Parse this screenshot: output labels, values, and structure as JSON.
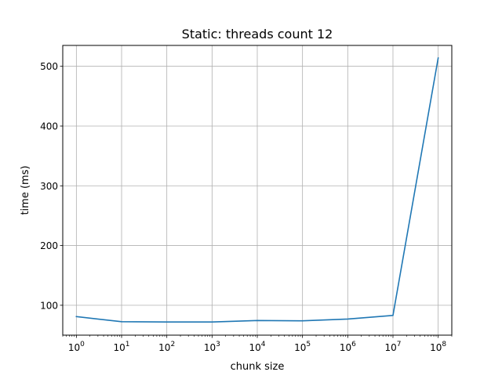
{
  "chart_data": {
    "type": "line",
    "title": "Static: threads count 12",
    "xlabel": "chunk size",
    "ylabel": "time (ms)",
    "x_scale": "log10",
    "x": [
      1,
      10,
      100,
      1000,
      10000,
      100000,
      1000000,
      10000000,
      100000000
    ],
    "xticks": [
      {
        "value": 1,
        "base": "10",
        "exp": "0"
      },
      {
        "value": 10,
        "base": "10",
        "exp": "1"
      },
      {
        "value": 100,
        "base": "10",
        "exp": "2"
      },
      {
        "value": 1000,
        "base": "10",
        "exp": "3"
      },
      {
        "value": 10000,
        "base": "10",
        "exp": "4"
      },
      {
        "value": 100000,
        "base": "10",
        "exp": "5"
      },
      {
        "value": 1000000,
        "base": "10",
        "exp": "6"
      },
      {
        "value": 10000000,
        "base": "10",
        "exp": "7"
      },
      {
        "value": 100000000,
        "base": "10",
        "exp": "8"
      }
    ],
    "xlim": [
      0.5,
      200000000
    ],
    "ylim": [
      50,
      535
    ],
    "yticks": [
      100,
      200,
      300,
      400,
      500
    ],
    "grid": true,
    "series": [
      {
        "color": "#1f77b4",
        "values": [
          81,
          72.5,
          72,
          72,
          74.5,
          74,
          77,
          83,
          514
        ]
      }
    ],
    "colors": {
      "grid": "#b0b0b0",
      "axes": "#000000"
    }
  }
}
